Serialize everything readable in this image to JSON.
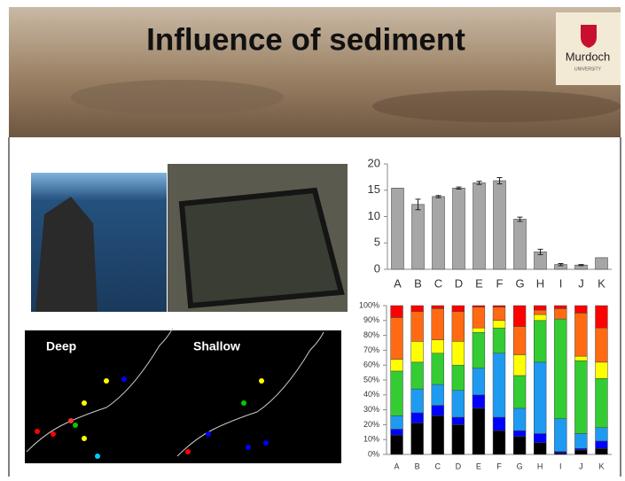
{
  "header": {
    "title": "Influence of sediment",
    "logo": {
      "name": "Murdoch",
      "subtitle": "UNIVERSITY"
    }
  },
  "maps": {
    "left_label": "Deep",
    "right_label": "Shallow"
  },
  "chart_data": [
    {
      "type": "bar",
      "categories": [
        "A",
        "B",
        "C",
        "D",
        "E",
        "F",
        "G",
        "H",
        "I",
        "J",
        "K"
      ],
      "values": [
        15.4,
        12.3,
        13.8,
        15.4,
        16.4,
        16.8,
        9.5,
        3.3,
        0.9,
        0.8,
        2.2
      ],
      "errors": [
        null,
        1.0,
        0.2,
        0.2,
        0.3,
        0.6,
        0.4,
        0.5,
        0.2,
        0.1,
        null
      ],
      "color": "#a6a6a6",
      "ylim": [
        0,
        20
      ],
      "yticks": [
        0,
        5,
        10,
        15,
        20
      ],
      "grid": false
    },
    {
      "type": "stacked_bar",
      "categories": [
        "A",
        "B",
        "C",
        "D",
        "E",
        "F",
        "G",
        "H",
        "I",
        "J",
        "K"
      ],
      "series": [
        {
          "color": "#000000",
          "values": [
            13,
            21,
            26,
            20,
            31,
            16,
            12,
            8,
            1,
            3,
            4
          ]
        },
        {
          "color": "#0000ff",
          "values": [
            4,
            7,
            7,
            5,
            9,
            9,
            4,
            6,
            1,
            1,
            5
          ]
        },
        {
          "color": "#1e9bf0",
          "values": [
            9,
            16,
            14,
            18,
            18,
            43,
            15,
            48,
            22,
            10,
            9
          ]
        },
        {
          "color": "#33cc33",
          "values": [
            30,
            18,
            21,
            17,
            24,
            17,
            22,
            28,
            67,
            49,
            33
          ]
        },
        {
          "color": "#ffff00",
          "values": [
            8,
            14,
            9,
            16,
            3,
            5,
            14,
            4,
            0,
            3,
            11
          ]
        },
        {
          "color": "#ff6a13",
          "values": [
            28,
            20,
            21,
            20,
            14,
            9,
            19,
            3,
            7,
            29,
            23
          ]
        },
        {
          "color": "#ff0000",
          "values": [
            8,
            4,
            2,
            4,
            1,
            1,
            14,
            3,
            2,
            5,
            15
          ]
        }
      ],
      "ylim": [
        0,
        100
      ],
      "yticks": [
        {
          "value": 0,
          "label": "0%"
        },
        {
          "value": 10,
          "label": "10%"
        },
        {
          "value": 20,
          "label": "20%"
        },
        {
          "value": 30,
          "label": "30%"
        },
        {
          "value": 40,
          "label": "40%"
        },
        {
          "value": 50,
          "label": "50%"
        },
        {
          "value": 60,
          "label": "60%"
        },
        {
          "value": 70,
          "label": "70%"
        },
        {
          "value": 80,
          "label": "80%"
        },
        {
          "value": 90,
          "label": "90%"
        },
        {
          "value": 100,
          "label": "100%"
        }
      ],
      "grid": false
    }
  ]
}
